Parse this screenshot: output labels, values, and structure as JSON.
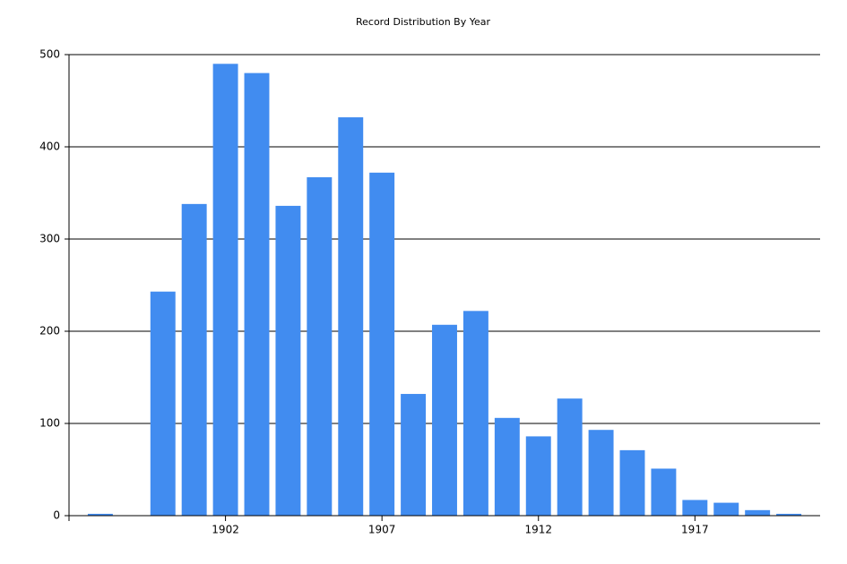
{
  "chart_data": {
    "type": "bar",
    "title": "Record Distribution By Year",
    "x": [
      1898,
      1900,
      1901,
      1902,
      1903,
      1904,
      1905,
      1906,
      1907,
      1908,
      1909,
      1910,
      1911,
      1912,
      1913,
      1914,
      1915,
      1916,
      1917,
      1918,
      1919,
      1920
    ],
    "values": [
      2,
      243,
      338,
      490,
      480,
      336,
      367,
      432,
      372,
      132,
      207,
      222,
      106,
      86,
      127,
      93,
      71,
      51,
      17,
      14,
      6,
      2
    ],
    "color": "#418cf0",
    "xlim": [
      1897,
      1921
    ],
    "xticks": [
      1902,
      1907,
      1912,
      1917
    ],
    "ylim": [
      0,
      500
    ],
    "yticks": [
      0,
      100,
      200,
      300,
      400,
      500
    ],
    "grid": true
  }
}
